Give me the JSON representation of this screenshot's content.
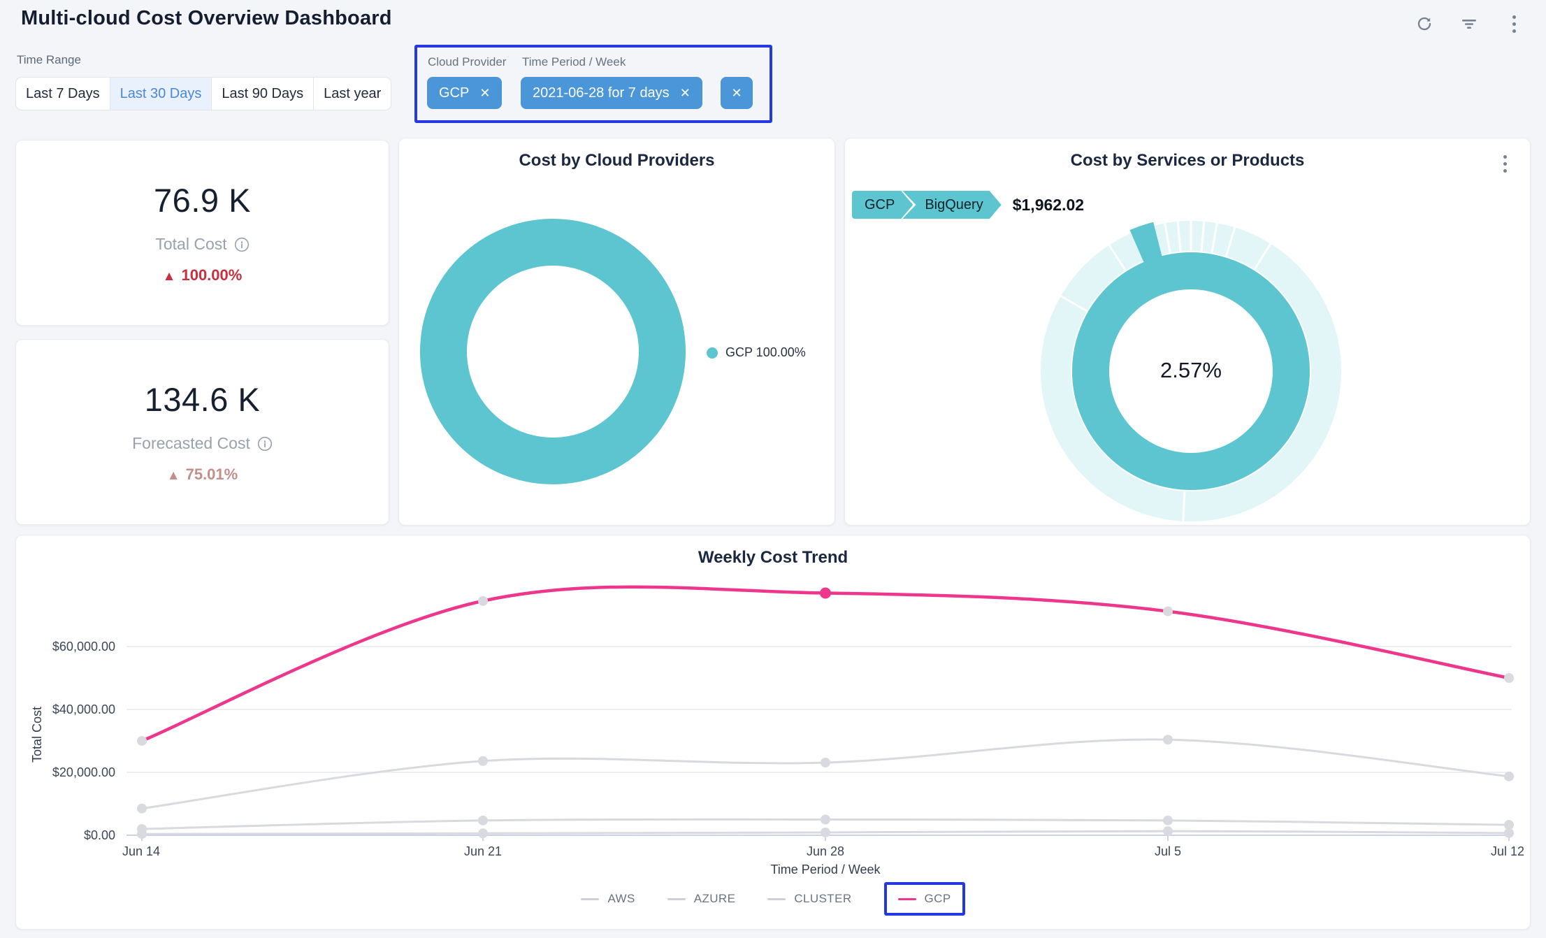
{
  "theme": {
    "teal": "#5CC5CF",
    "teal_light": "#E2F5F7",
    "pink": "#EE368C",
    "chip_blue": "#4A96D8",
    "annotation_blue": "#2438E3",
    "red": "#C82F3F",
    "rose": "#C28F8C",
    "active_tab_bg": "#E9F1FC",
    "active_tab_text": "#4C87D9",
    "gray_line": "#D8DADF"
  },
  "header": {
    "title": "Multi-cloud Cost Overview Dashboard",
    "icons": [
      "refresh",
      "filter",
      "more"
    ]
  },
  "time_range": {
    "label": "Time Range",
    "options": [
      "Last 7 Days",
      "Last 30 Days",
      "Last 90 Days",
      "Last year"
    ],
    "selected": "Last 30 Days"
  },
  "filters": {
    "cloud_provider_label": "Cloud Provider",
    "cloud_provider_value": "GCP",
    "time_period_label": "Time Period / Week",
    "time_period_value": "2021-06-28 for 7 days"
  },
  "kpis": [
    {
      "value": "76.9 K",
      "label": "Total Cost",
      "arrow": "▲",
      "delta": "100.00%",
      "direction": "up"
    },
    {
      "value": "134.6 K",
      "label": "Forecasted Cost",
      "arrow": "▲",
      "delta": "75.01%",
      "direction": "up"
    }
  ],
  "chart_data": [
    {
      "type": "pie",
      "variant": "donut",
      "title": "Cost by Cloud Providers",
      "labels": [
        "GCP"
      ],
      "values": [
        100.0
      ],
      "legend": [
        "GCP 100.00%"
      ],
      "colors": [
        "#5CC5CF"
      ],
      "legend_position": "right"
    },
    {
      "type": "pie",
      "variant": "sunburst",
      "title": "Cost by Services or Products",
      "breadcrumb": [
        "GCP",
        "BigQuery"
      ],
      "selected_service": "BigQuery",
      "selected_cost": "$1,962.02",
      "selected_percent": 2.57,
      "center_label": "2.57%",
      "inner_ring": {
        "label": "GCP",
        "percent": 100
      },
      "outer_ring_highlight": {
        "label": "BigQuery",
        "percent": 2.57
      }
    },
    {
      "type": "line",
      "title": "Weekly Cost Trend",
      "xlabel": "Time Period / Week",
      "ylabel": "Total Cost",
      "categories": [
        "Jun 14",
        "Jun 21",
        "Jun 28",
        "Jul 5",
        "Jul 12"
      ],
      "series": [
        {
          "name": "AWS",
          "color": "#D8DADF",
          "values": [
            8500,
            23600,
            23100,
            30400,
            18700
          ]
        },
        {
          "name": "AZURE",
          "color": "#D8DADF",
          "values": [
            2000,
            4700,
            5000,
            4700,
            3300
          ]
        },
        {
          "name": "CLUSTER",
          "color": "#D8DADF",
          "values": [
            400,
            600,
            900,
            1300,
            700
          ]
        },
        {
          "name": "GCP",
          "color": "#EE368C",
          "values": [
            30000,
            74500,
            77000,
            71200,
            50000
          ]
        }
      ],
      "highlight_point": {
        "series": "GCP",
        "category": "Jun 28"
      },
      "yticks": {
        "labels": [
          "$60,000.00",
          "$40,000.00",
          "$20,000.00",
          "$0.00"
        ],
        "values": [
          60000,
          40000,
          20000,
          0
        ]
      },
      "ylim": [
        0,
        80000
      ],
      "grid": "horizontal",
      "legend_position": "bottom"
    }
  ]
}
